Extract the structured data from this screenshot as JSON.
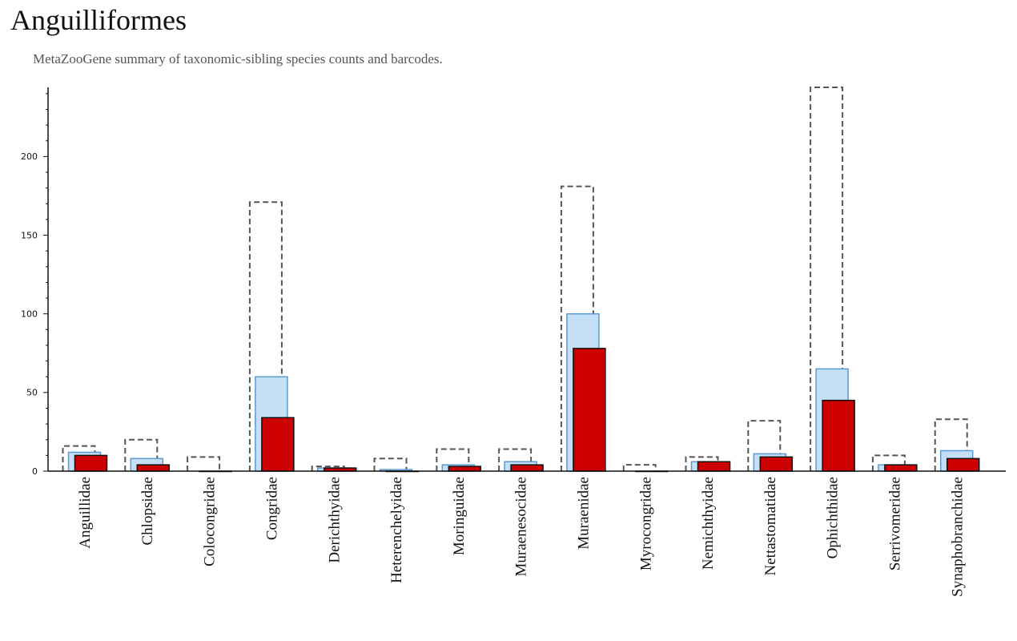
{
  "header": {
    "title": "Anguilliformes",
    "subtitle": "MetaZooGene summary of taxonomic-sibling species counts and barcodes."
  },
  "colors": {
    "outline_dashed": "#555555",
    "light_fill": "#c5dff7",
    "light_stroke": "#5b9bd5",
    "red_fill": "#cc0000",
    "red_stroke": "#111111",
    "axis": "#111111"
  },
  "chart_data": {
    "type": "bar",
    "title": "",
    "xlabel": "",
    "ylabel": "",
    "ylim": [
      0,
      244
    ],
    "yticks": [
      0,
      50,
      100,
      150,
      200
    ],
    "grid": false,
    "legend": "none",
    "categories": [
      "Anguillidae",
      "Chlopsidae",
      "Colocongridae",
      "Congridae",
      "Derichthyidae",
      "Heterenchelyidae",
      "Moringuidae",
      "Muraenesocidae",
      "Muraenidae",
      "Myrocongridae",
      "Nemichthyidae",
      "Nettastomatidae",
      "Ophichthidae",
      "Serrivomeridae",
      "Synaphobranchidae"
    ],
    "series": [
      {
        "style": "dashed-outline",
        "values": [
          16,
          20,
          9,
          171,
          3,
          8,
          14,
          14,
          181,
          4,
          9,
          32,
          244,
          10,
          33
        ]
      },
      {
        "style": "light-blue",
        "values": [
          12,
          8,
          0,
          60,
          2,
          1,
          4,
          6,
          100,
          0,
          6,
          11,
          65,
          4,
          13
        ]
      },
      {
        "style": "red",
        "values": [
          10,
          4,
          0,
          34,
          2,
          0,
          3,
          4,
          78,
          0,
          6,
          9,
          45,
          4,
          8
        ]
      }
    ]
  }
}
